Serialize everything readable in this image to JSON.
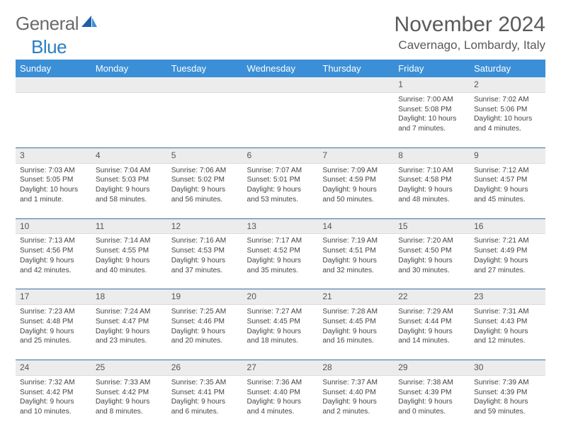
{
  "logo": {
    "text1": "General",
    "text2": "Blue"
  },
  "header": {
    "title": "November 2024",
    "location": "Cavernago, Lombardy, Italy"
  },
  "colors": {
    "header_bg": "#3b8fd6",
    "header_text": "#ffffff",
    "daynum_bg": "#ececec",
    "divider": "#3b6ea5",
    "logo_gray": "#6b6b6b",
    "logo_blue": "#2a7ec4"
  },
  "weekdays": [
    "Sunday",
    "Monday",
    "Tuesday",
    "Wednesday",
    "Thursday",
    "Friday",
    "Saturday"
  ],
  "weeks": [
    [
      {
        "day": "",
        "lines": []
      },
      {
        "day": "",
        "lines": []
      },
      {
        "day": "",
        "lines": []
      },
      {
        "day": "",
        "lines": []
      },
      {
        "day": "",
        "lines": []
      },
      {
        "day": "1",
        "lines": [
          "Sunrise: 7:00 AM",
          "Sunset: 5:08 PM",
          "Daylight: 10 hours",
          "and 7 minutes."
        ]
      },
      {
        "day": "2",
        "lines": [
          "Sunrise: 7:02 AM",
          "Sunset: 5:06 PM",
          "Daylight: 10 hours",
          "and 4 minutes."
        ]
      }
    ],
    [
      {
        "day": "3",
        "lines": [
          "Sunrise: 7:03 AM",
          "Sunset: 5:05 PM",
          "Daylight: 10 hours",
          "and 1 minute."
        ]
      },
      {
        "day": "4",
        "lines": [
          "Sunrise: 7:04 AM",
          "Sunset: 5:03 PM",
          "Daylight: 9 hours",
          "and 58 minutes."
        ]
      },
      {
        "day": "5",
        "lines": [
          "Sunrise: 7:06 AM",
          "Sunset: 5:02 PM",
          "Daylight: 9 hours",
          "and 56 minutes."
        ]
      },
      {
        "day": "6",
        "lines": [
          "Sunrise: 7:07 AM",
          "Sunset: 5:01 PM",
          "Daylight: 9 hours",
          "and 53 minutes."
        ]
      },
      {
        "day": "7",
        "lines": [
          "Sunrise: 7:09 AM",
          "Sunset: 4:59 PM",
          "Daylight: 9 hours",
          "and 50 minutes."
        ]
      },
      {
        "day": "8",
        "lines": [
          "Sunrise: 7:10 AM",
          "Sunset: 4:58 PM",
          "Daylight: 9 hours",
          "and 48 minutes."
        ]
      },
      {
        "day": "9",
        "lines": [
          "Sunrise: 7:12 AM",
          "Sunset: 4:57 PM",
          "Daylight: 9 hours",
          "and 45 minutes."
        ]
      }
    ],
    [
      {
        "day": "10",
        "lines": [
          "Sunrise: 7:13 AM",
          "Sunset: 4:56 PM",
          "Daylight: 9 hours",
          "and 42 minutes."
        ]
      },
      {
        "day": "11",
        "lines": [
          "Sunrise: 7:14 AM",
          "Sunset: 4:55 PM",
          "Daylight: 9 hours",
          "and 40 minutes."
        ]
      },
      {
        "day": "12",
        "lines": [
          "Sunrise: 7:16 AM",
          "Sunset: 4:53 PM",
          "Daylight: 9 hours",
          "and 37 minutes."
        ]
      },
      {
        "day": "13",
        "lines": [
          "Sunrise: 7:17 AM",
          "Sunset: 4:52 PM",
          "Daylight: 9 hours",
          "and 35 minutes."
        ]
      },
      {
        "day": "14",
        "lines": [
          "Sunrise: 7:19 AM",
          "Sunset: 4:51 PM",
          "Daylight: 9 hours",
          "and 32 minutes."
        ]
      },
      {
        "day": "15",
        "lines": [
          "Sunrise: 7:20 AM",
          "Sunset: 4:50 PM",
          "Daylight: 9 hours",
          "and 30 minutes."
        ]
      },
      {
        "day": "16",
        "lines": [
          "Sunrise: 7:21 AM",
          "Sunset: 4:49 PM",
          "Daylight: 9 hours",
          "and 27 minutes."
        ]
      }
    ],
    [
      {
        "day": "17",
        "lines": [
          "Sunrise: 7:23 AM",
          "Sunset: 4:48 PM",
          "Daylight: 9 hours",
          "and 25 minutes."
        ]
      },
      {
        "day": "18",
        "lines": [
          "Sunrise: 7:24 AM",
          "Sunset: 4:47 PM",
          "Daylight: 9 hours",
          "and 23 minutes."
        ]
      },
      {
        "day": "19",
        "lines": [
          "Sunrise: 7:25 AM",
          "Sunset: 4:46 PM",
          "Daylight: 9 hours",
          "and 20 minutes."
        ]
      },
      {
        "day": "20",
        "lines": [
          "Sunrise: 7:27 AM",
          "Sunset: 4:45 PM",
          "Daylight: 9 hours",
          "and 18 minutes."
        ]
      },
      {
        "day": "21",
        "lines": [
          "Sunrise: 7:28 AM",
          "Sunset: 4:45 PM",
          "Daylight: 9 hours",
          "and 16 minutes."
        ]
      },
      {
        "day": "22",
        "lines": [
          "Sunrise: 7:29 AM",
          "Sunset: 4:44 PM",
          "Daylight: 9 hours",
          "and 14 minutes."
        ]
      },
      {
        "day": "23",
        "lines": [
          "Sunrise: 7:31 AM",
          "Sunset: 4:43 PM",
          "Daylight: 9 hours",
          "and 12 minutes."
        ]
      }
    ],
    [
      {
        "day": "24",
        "lines": [
          "Sunrise: 7:32 AM",
          "Sunset: 4:42 PM",
          "Daylight: 9 hours",
          "and 10 minutes."
        ]
      },
      {
        "day": "25",
        "lines": [
          "Sunrise: 7:33 AM",
          "Sunset: 4:42 PM",
          "Daylight: 9 hours",
          "and 8 minutes."
        ]
      },
      {
        "day": "26",
        "lines": [
          "Sunrise: 7:35 AM",
          "Sunset: 4:41 PM",
          "Daylight: 9 hours",
          "and 6 minutes."
        ]
      },
      {
        "day": "27",
        "lines": [
          "Sunrise: 7:36 AM",
          "Sunset: 4:40 PM",
          "Daylight: 9 hours",
          "and 4 minutes."
        ]
      },
      {
        "day": "28",
        "lines": [
          "Sunrise: 7:37 AM",
          "Sunset: 4:40 PM",
          "Daylight: 9 hours",
          "and 2 minutes."
        ]
      },
      {
        "day": "29",
        "lines": [
          "Sunrise: 7:38 AM",
          "Sunset: 4:39 PM",
          "Daylight: 9 hours",
          "and 0 minutes."
        ]
      },
      {
        "day": "30",
        "lines": [
          "Sunrise: 7:39 AM",
          "Sunset: 4:39 PM",
          "Daylight: 8 hours",
          "and 59 minutes."
        ]
      }
    ]
  ]
}
